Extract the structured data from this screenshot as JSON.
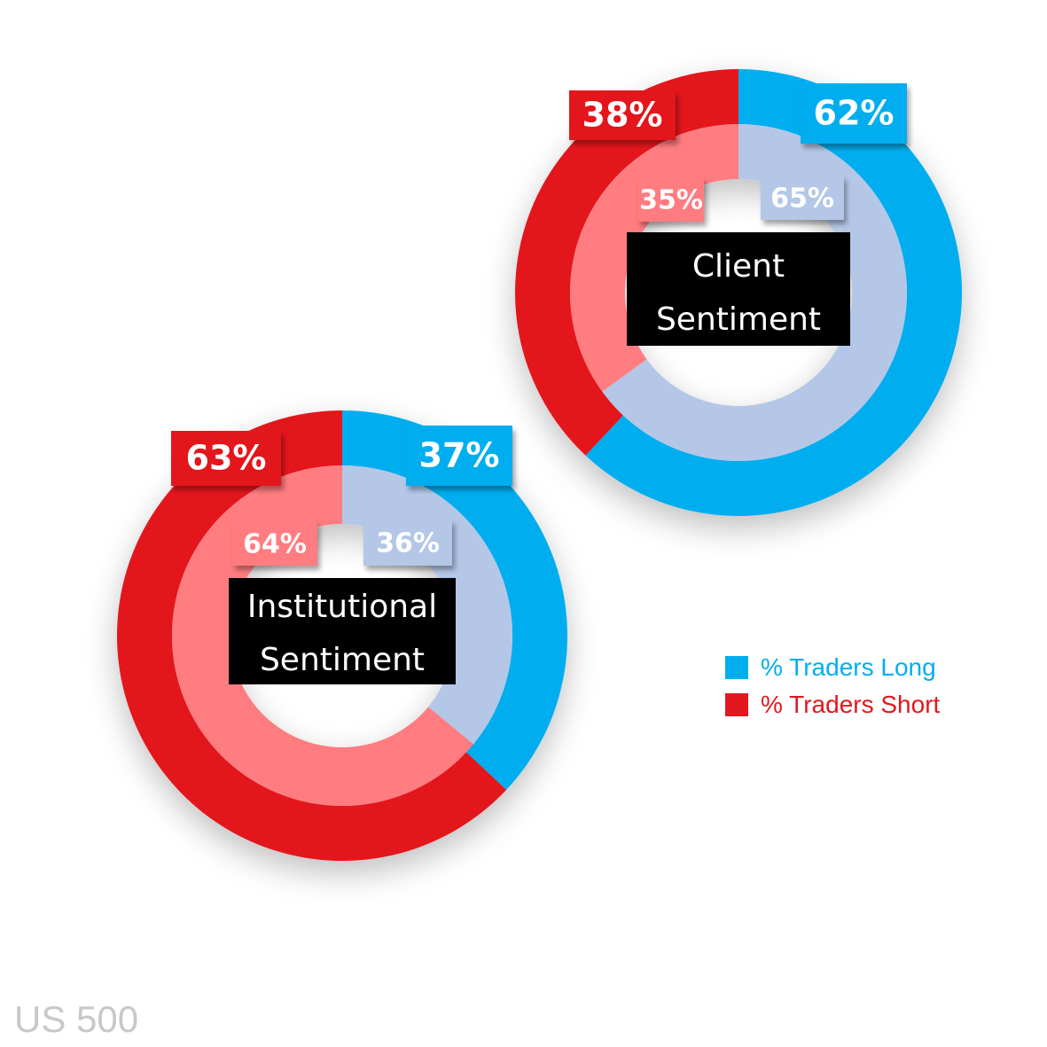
{
  "chart_data": {
    "type": "pie",
    "title": "",
    "charts": [
      {
        "center_label_lines": [
          "Client",
          "Sentiment"
        ],
        "outer": {
          "long": 62,
          "short": 38
        },
        "inner": {
          "long": 65,
          "short": 35
        }
      },
      {
        "center_label_lines": [
          "Institutional",
          "Sentiment"
        ],
        "outer": {
          "long": 37,
          "short": 63
        },
        "inner": {
          "long": 36,
          "short": 64
        }
      }
    ],
    "legend": [
      {
        "label": "% Traders Long",
        "color": "#00aeef"
      },
      {
        "label": "% Traders Short",
        "color": "#e3171e"
      }
    ],
    "legend_placement": "right"
  },
  "colors": {
    "outer_long": "#00aeef",
    "outer_short": "#e3171e",
    "inner_long": "#b4c7e7",
    "inner_short": "#ff7c80",
    "center_bg": "#000000"
  },
  "ticker": "US 500"
}
